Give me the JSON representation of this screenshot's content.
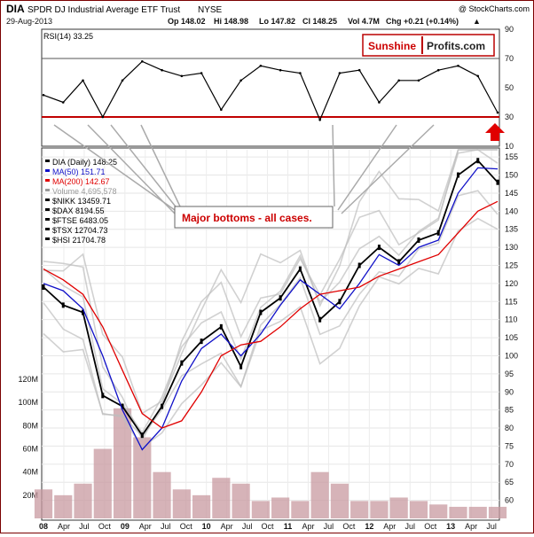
{
  "header": {
    "symbol": "DIA",
    "name": "SPDR DJ Industrial Average ETF Trust",
    "exchange": "NYSE",
    "copyright": "@ StockCharts.com",
    "date": "29-Aug-2013",
    "op": "Op 148.02",
    "hi": "Hi 148.98",
    "lo": "Lo 147.82",
    "cl": "Cl 148.25",
    "vol": "Vol 4.7M",
    "chg": "Chg +0.21 (+0.14%)",
    "chg_arrow": "▲"
  },
  "brand": {
    "sunshine": "Sunshine",
    "profits": "Profits.com"
  },
  "rsi_panel": {
    "label": "RSI(14) 33.25"
  },
  "legend": [
    {
      "label": "DIA (Daily) 148.25",
      "color": "#000000"
    },
    {
      "label": "MA(50) 151.71",
      "color": "#1010c8"
    },
    {
      "label": "MA(200) 142.67",
      "color": "#e00000"
    },
    {
      "label": "Volume 4,695,578",
      "color": "#999999"
    },
    {
      "label": "$NIKK 13459.71",
      "color": "#000000"
    },
    {
      "label": "$DAX 8194.55",
      "color": "#000000"
    },
    {
      "label": "$FTSE 6483.05",
      "color": "#000000"
    },
    {
      "label": "$TSX 12704.73",
      "color": "#000000"
    },
    {
      "label": "$HSI 21704.78",
      "color": "#000000"
    }
  ],
  "annotation": {
    "text": "Major bottoms - all cases.",
    "color": "#cc0000"
  },
  "colors": {
    "price": "#000000",
    "ma50": "#1010c8",
    "ma200": "#e00000",
    "rsi_line": "#cc0000",
    "overlay": "#bdbdbd",
    "volume": "#c89aa0",
    "arrow": "#e00000"
  },
  "chart_data": [
    {
      "type": "line",
      "title": "RSI(14) 33.25",
      "ylim": [
        10,
        90
      ],
      "yticks": [
        "90",
        "70",
        "50",
        "30",
        "10"
      ],
      "reference_lines": [
        70,
        30
      ],
      "x": [
        "2008-01",
        "2008-04",
        "2008-07",
        "2008-10",
        "2009-01",
        "2009-04",
        "2009-07",
        "2009-10",
        "2010-01",
        "2010-04",
        "2010-07",
        "2010-10",
        "2011-01",
        "2011-04",
        "2011-07",
        "2011-10",
        "2012-01",
        "2012-04",
        "2012-07",
        "2012-10",
        "2013-01",
        "2013-04",
        "2013-07",
        "2013-08"
      ],
      "series": [
        {
          "values": [
            45,
            40,
            55,
            30,
            55,
            68,
            62,
            58,
            60,
            35,
            55,
            65,
            62,
            60,
            28,
            60,
            62,
            40,
            55,
            55,
            62,
            65,
            58,
            33
          ]
        }
      ]
    },
    {
      "type": "line",
      "title": "DIA SPDR DJ Industrial Average ETF Trust NYSE",
      "ylim": [
        55,
        157
      ],
      "yticks": [
        "155",
        "150",
        "145",
        "140",
        "135",
        "130",
        "125",
        "120",
        "115",
        "110",
        "105",
        "100",
        "95",
        "90",
        "85",
        "80",
        "75",
        "70",
        "65",
        "60"
      ],
      "volume_ticks": [
        "120M",
        "100M",
        "80M",
        "60M",
        "40M",
        "20M"
      ],
      "x_tick_labels": [
        "08",
        "Apr",
        "Jul",
        "Oct",
        "09",
        "Apr",
        "Jul",
        "Oct",
        "10",
        "Apr",
        "Jul",
        "Oct",
        "11",
        "Apr",
        "Jul",
        "Oct",
        "12",
        "Apr",
        "Jul",
        "Oct",
        "13",
        "Apr",
        "Jul"
      ],
      "x": [
        "2008-01",
        "2008-04",
        "2008-07",
        "2008-10",
        "2009-01",
        "2009-04",
        "2009-07",
        "2009-10",
        "2010-01",
        "2010-04",
        "2010-07",
        "2010-10",
        "2011-01",
        "2011-04",
        "2011-07",
        "2011-10",
        "2012-01",
        "2012-04",
        "2012-07",
        "2012-10",
        "2013-01",
        "2013-04",
        "2013-07",
        "2013-08"
      ],
      "series": [
        {
          "name": "DIA (Daily)",
          "values": [
            119,
            114,
            112,
            89,
            86,
            78,
            86,
            98,
            104,
            108,
            97,
            112,
            116,
            124,
            110,
            115,
            125,
            130,
            126,
            132,
            134,
            150,
            154,
            148
          ]
        },
        {
          "name": "MA(50)",
          "values": [
            120,
            118,
            113,
            100,
            85,
            74,
            80,
            93,
            102,
            106,
            100,
            106,
            114,
            121,
            117,
            113,
            120,
            128,
            125,
            130,
            132,
            145,
            152,
            151.7
          ]
        },
        {
          "name": "MA(200)",
          "values": [
            124,
            121,
            117,
            108,
            96,
            84,
            80,
            82,
            90,
            100,
            103,
            104,
            108,
            113,
            117,
            118,
            119,
            122,
            124,
            126,
            128,
            134,
            140,
            142.7
          ]
        }
      ],
      "volume_millions": [
        25,
        20,
        30,
        60,
        95,
        70,
        40,
        25,
        20,
        35,
        30,
        15,
        18,
        15,
        40,
        30,
        15,
        15,
        18,
        15,
        12,
        10,
        10,
        10
      ],
      "annotation": "Major bottoms - all cases."
    }
  ]
}
